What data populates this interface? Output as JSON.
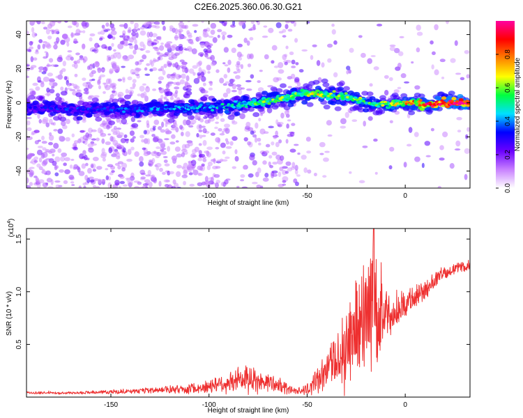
{
  "figure": {
    "title": "C2E6.2025.360.06.30.G21"
  },
  "chart_data": [
    {
      "type": "heatmap",
      "xlabel": "Height of straight line (km)",
      "ylabel": "Frequency (Hz)",
      "xlim": [
        -193,
        33
      ],
      "ylim": [
        -50,
        48
      ],
      "xticks": [
        -150,
        -100,
        -50,
        0
      ],
      "yticks": [
        -40,
        -20,
        0,
        20,
        40
      ],
      "colorbar": {
        "label": "Normalized spectral amplitude",
        "range": [
          0,
          1
        ],
        "ticks": [
          0.0,
          0.2,
          0.4,
          0.6,
          0.8
        ],
        "colormap": [
          "#ffffff",
          "#c880ff",
          "#6a00ff",
          "#0000ff",
          "#00e0ff",
          "#00ff40",
          "#ffff00",
          "#ff8000",
          "#ff0000",
          "#ff00a0"
        ]
      },
      "ridge": {
        "x": [
          -193,
          -180,
          -160,
          -140,
          -120,
          -100,
          -90,
          -80,
          -70,
          -60,
          -55,
          -50,
          -45,
          -40,
          -35,
          -30,
          -25,
          -20,
          -15,
          -10,
          -5,
          0,
          5,
          10,
          15,
          20,
          25,
          33
        ],
        "y": [
          -3,
          -3,
          -4,
          -4,
          -3,
          -3,
          -2,
          -1,
          1,
          3,
          5,
          5,
          5,
          5,
          4,
          3,
          2,
          0,
          -1,
          -1,
          -1,
          0,
          0,
          -1,
          -1,
          0,
          0,
          0
        ],
        "amplitude": [
          0.25,
          0.28,
          0.3,
          0.32,
          0.35,
          0.38,
          0.42,
          0.45,
          0.5,
          0.52,
          0.5,
          0.55,
          0.58,
          0.55,
          0.5,
          0.52,
          0.55,
          0.45,
          0.5,
          0.55,
          0.6,
          0.65,
          0.7,
          0.75,
          0.85,
          0.95,
          1.0,
          1.0
        ]
      }
    },
    {
      "type": "line",
      "xlabel": "Height of straight line (km)",
      "ylabel": "SNR (10 * v/v)",
      "yscale_label": "(x10",
      "yscale_exp": "4",
      "yscale_close": ")",
      "xlim": [
        -193,
        33
      ],
      "ylim": [
        0,
        1.6
      ],
      "xticks": [
        -150,
        -100,
        -50,
        0
      ],
      "yticks": [
        0.5,
        1.0,
        1.5
      ],
      "series": [
        {
          "color": "#ee3030",
          "x": [
            -193,
            -170,
            -150,
            -130,
            -110,
            -100,
            -95,
            -90,
            -85,
            -80,
            -75,
            -70,
            -65,
            -60,
            -55,
            -50,
            -45,
            -40,
            -35,
            -30,
            -25,
            -22,
            -20,
            -18,
            -16,
            -14,
            -12,
            -10,
            -5,
            0,
            5,
            10,
            15,
            20,
            25,
            33
          ],
          "y": [
            0.04,
            0.04,
            0.05,
            0.06,
            0.08,
            0.1,
            0.13,
            0.14,
            0.15,
            0.16,
            0.15,
            0.14,
            0.12,
            0.08,
            0.06,
            0.08,
            0.16,
            0.25,
            0.35,
            0.5,
            0.62,
            0.75,
            0.8,
            0.95,
            1.05,
            0.85,
            0.8,
            0.78,
            0.82,
            0.88,
            0.95,
            1.02,
            1.1,
            1.18,
            1.22,
            1.25
          ],
          "amplitude": [
            0.01,
            0.01,
            0.015,
            0.02,
            0.04,
            0.05,
            0.08,
            0.09,
            0.1,
            0.11,
            0.09,
            0.08,
            0.06,
            0.04,
            0.03,
            0.05,
            0.1,
            0.15,
            0.22,
            0.3,
            0.38,
            0.45,
            0.5,
            0.55,
            0.5,
            0.45,
            0.3,
            0.18,
            0.14,
            0.12,
            0.1,
            0.08,
            0.06,
            0.05,
            0.04,
            0.04
          ]
        }
      ]
    }
  ]
}
